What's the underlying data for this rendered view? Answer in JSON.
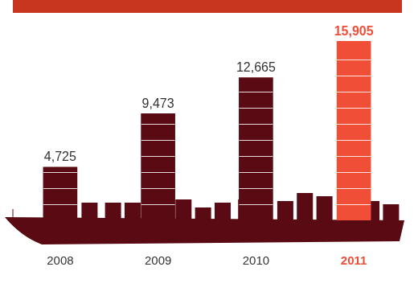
{
  "chart_data": {
    "type": "bar",
    "categories": [
      "2008",
      "2009",
      "2010",
      "2011"
    ],
    "values": [
      4725,
      9473,
      12665,
      15905
    ],
    "value_labels": [
      "4,725",
      "9,473",
      "12,665",
      "15,905"
    ],
    "colors": [
      "#5a0a12",
      "#5a0a12",
      "#5a0a12",
      "#f04e37"
    ],
    "data_labels": true,
    "grid": false,
    "tick_labels": "x"
  }
}
